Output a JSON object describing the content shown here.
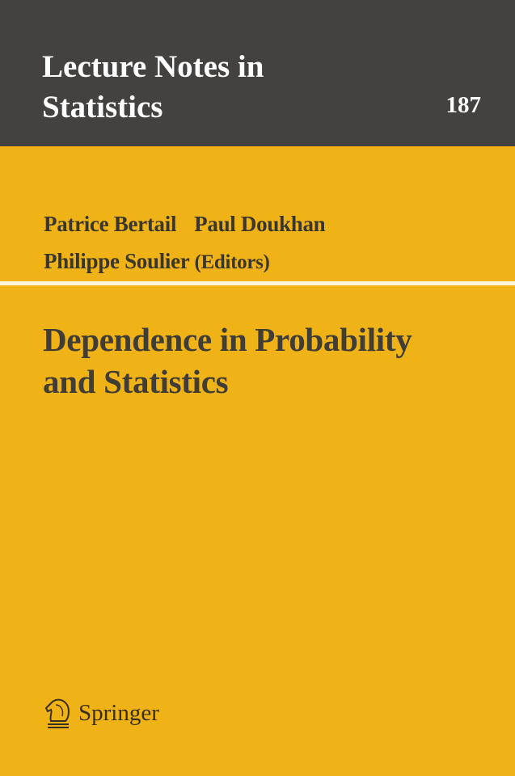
{
  "series": {
    "line1": "Lecture Notes in",
    "line2": "Statistics",
    "volume": "187"
  },
  "authors": {
    "names": [
      "Patrice Bertail",
      "Paul Doukhan",
      "Philippe Soulier"
    ],
    "role": "(Editors)"
  },
  "title": {
    "line1": "Dependence in Probability",
    "line2": "and Statistics"
  },
  "publisher": {
    "name": "Springer",
    "icon": "knight-horse-icon"
  },
  "colors": {
    "header": "#444240",
    "background": "#efb317",
    "text": "#403c36"
  }
}
